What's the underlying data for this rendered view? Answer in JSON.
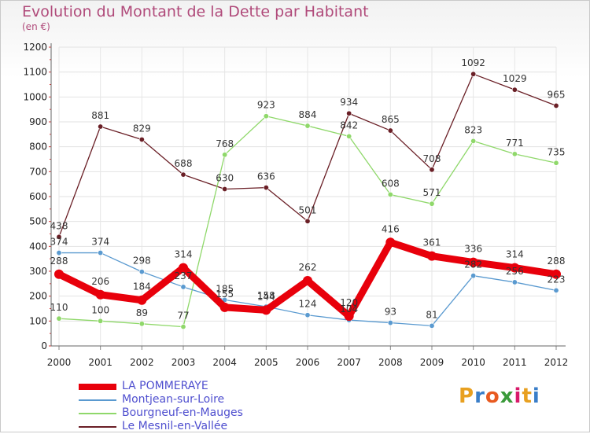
{
  "header": {
    "title": "Evolution du Montant de la Dette par Habitant",
    "unit": "(en €)"
  },
  "logo": {
    "text": "Proxiti",
    "colors": [
      "#e8a020",
      "#3a7ec8",
      "#e85a20",
      "#3a9a3a",
      "#d81a6a",
      "#e8a020",
      "#3a7ec8"
    ]
  },
  "chart_data": {
    "type": "line",
    "title": "Evolution du Montant de la Dette par Habitant",
    "subtitle": "(en €)",
    "x": [
      "2000",
      "2001",
      "2002",
      "2003",
      "2004",
      "2005",
      "2006",
      "2007",
      "2008",
      "2009",
      "2010",
      "2011",
      "2012"
    ],
    "ylim": [
      0,
      1200
    ],
    "yticks": [
      0,
      100,
      200,
      300,
      400,
      500,
      600,
      700,
      800,
      900,
      1000,
      1100,
      1200
    ],
    "grid": true,
    "legend_position": "bottom-left",
    "series": [
      {
        "name": "LA POMMERAYE",
        "color": "#e8000b",
        "values": [
          288,
          206,
          184,
          314,
          155,
          144,
          262,
          120,
          416,
          361,
          336,
          314,
          288
        ]
      },
      {
        "name": "Montjean-sur-Loire",
        "color": "#5a9ad0",
        "values": [
          374,
          374,
          298,
          237,
          185,
          158,
          124,
          104,
          93,
          81,
          282,
          256,
          223
        ]
      },
      {
        "name": "Bourgneuf-en-Mauges",
        "color": "#8fd86a",
        "values": [
          110,
          100,
          89,
          77,
          768,
          923,
          884,
          842,
          608,
          571,
          823,
          771,
          735
        ]
      },
      {
        "name": "Le Mesnil-en-Vallée",
        "color": "#6a1f26",
        "values": [
          438,
          881,
          829,
          688,
          630,
          636,
          501,
          934,
          865,
          708,
          1092,
          1029,
          965
        ]
      }
    ]
  }
}
